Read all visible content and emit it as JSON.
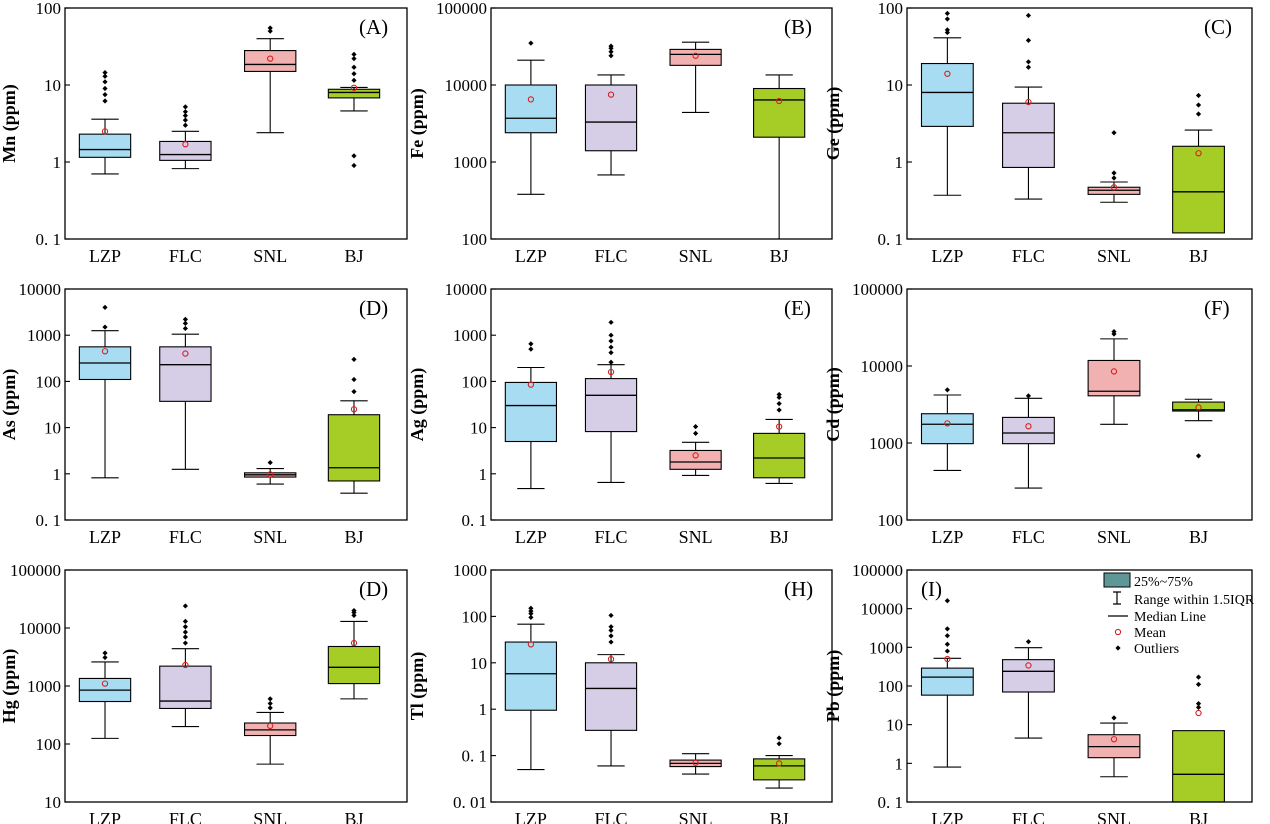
{
  "colors": {
    "LZP": "#a8dcf2",
    "FLC": "#d6cde6",
    "SNL": "#f2b1b1",
    "BJ": "#a5cd25",
    "mean": "#d62020",
    "frame": "#000000",
    "legend_box": "#5f9798"
  },
  "legend": {
    "box": "25%~75%",
    "range": "Range within 1.5IQR",
    "median": "Median Line",
    "mean": "Mean",
    "outliers": "Outliers"
  },
  "chart_data": [
    {
      "type": "box",
      "panel": "(A)",
      "ylabel": "Mn (ppm)",
      "yscale": "log",
      "ylim": [
        0.1,
        100
      ],
      "ticks": [
        0.1,
        1,
        10,
        100
      ],
      "tick_labels": [
        "0. 1",
        "1",
        "10",
        "100"
      ],
      "categories": [
        "LZP",
        "FLC",
        "SNL",
        "BJ"
      ],
      "boxes": [
        {
          "min": 0.7,
          "q1": 1.15,
          "median": 1.45,
          "q3": 2.3,
          "max": 3.6,
          "mean": 2.5,
          "outliers": [
            6.2,
            7.5,
            9.0,
            11.0,
            13.0,
            14.5
          ]
        },
        {
          "min": 0.82,
          "q1": 1.05,
          "median": 1.25,
          "q3": 1.85,
          "max": 2.5,
          "mean": 1.7,
          "outliers": [
            3.0,
            3.5,
            4.0,
            4.5,
            5.2
          ]
        },
        {
          "min": 2.4,
          "q1": 15,
          "median": 18.5,
          "q3": 28,
          "max": 40,
          "mean": 22,
          "outliers": [
            50,
            55
          ]
        },
        {
          "min": 4.6,
          "q1": 6.8,
          "median": 8.0,
          "q3": 8.8,
          "max": 9.3,
          "mean": 9.2,
          "outliers": [
            0.9,
            1.2,
            11.5,
            14,
            17,
            22,
            25
          ]
        }
      ]
    },
    {
      "type": "box",
      "panel": "(B)",
      "ylabel": "Fe (ppm)",
      "yscale": "log",
      "ylim": [
        100,
        100000
      ],
      "ticks": [
        100,
        1000,
        10000,
        100000
      ],
      "tick_labels": [
        "100",
        "1000",
        "10000",
        "100000"
      ],
      "categories": [
        "LZP",
        "FLC",
        "SNL",
        "BJ"
      ],
      "boxes": [
        {
          "min": 380,
          "q1": 2400,
          "median": 3700,
          "q3": 10000,
          "max": 21000,
          "mean": 6500,
          "outliers": [
            35000
          ]
        },
        {
          "min": 680,
          "q1": 1400,
          "median": 3300,
          "q3": 10000,
          "max": 13500,
          "mean": 7500,
          "outliers": [
            24000,
            27000,
            30000,
            32000
          ]
        },
        {
          "min": 4400,
          "q1": 18000,
          "median": 25000,
          "q3": 29000,
          "max": 36000,
          "mean": 24000,
          "outliers": []
        },
        {
          "min": 100,
          "q1": 2100,
          "median": 6400,
          "q3": 9000,
          "max": 13500,
          "mean": 6200,
          "outliers": []
        }
      ]
    },
    {
      "type": "box",
      "panel": "(C)",
      "ylabel": "Ge (ppm)",
      "yscale": "log",
      "ylim": [
        0.1,
        100
      ],
      "ticks": [
        0.1,
        1,
        10,
        100
      ],
      "tick_labels": [
        "0. 1",
        "1",
        "10",
        "100"
      ],
      "categories": [
        "LZP",
        "FLC",
        "SNL",
        "BJ"
      ],
      "boxes": [
        {
          "min": 0.37,
          "q1": 2.9,
          "median": 8.0,
          "q3": 19,
          "max": 41,
          "mean": 14,
          "outliers": [
            48,
            52,
            72,
            85
          ]
        },
        {
          "min": 0.33,
          "q1": 0.85,
          "median": 2.4,
          "q3": 5.8,
          "max": 9.4,
          "mean": 6.0,
          "outliers": [
            17,
            20,
            38,
            80
          ]
        },
        {
          "min": 0.3,
          "q1": 0.38,
          "median": 0.43,
          "q3": 0.47,
          "max": 0.55,
          "mean": 0.47,
          "outliers": [
            0.62,
            0.72,
            2.4
          ]
        },
        {
          "min": 0.12,
          "q1": 0.12,
          "median": 0.41,
          "q3": 1.6,
          "max": 2.6,
          "mean": 1.3,
          "outliers": [
            4.2,
            5.5,
            7.3
          ]
        }
      ]
    },
    {
      "type": "box",
      "panel": "(D)",
      "ylabel": "As (ppm)",
      "yscale": "log",
      "ylim": [
        0.1,
        10000
      ],
      "ticks": [
        0.1,
        1,
        10,
        100,
        1000,
        10000
      ],
      "tick_labels": [
        "0. 1",
        "1",
        "10",
        "100",
        "1000",
        "10000"
      ],
      "categories": [
        "LZP",
        "FLC",
        "SNL",
        "BJ"
      ],
      "boxes": [
        {
          "min": 0.82,
          "q1": 110,
          "median": 250,
          "q3": 560,
          "max": 1250,
          "mean": 450,
          "outliers": [
            1500,
            4000
          ]
        },
        {
          "min": 1.25,
          "q1": 37,
          "median": 230,
          "q3": 560,
          "max": 1050,
          "mean": 400,
          "outliers": [
            1400,
            1800,
            2200
          ]
        },
        {
          "min": 0.6,
          "q1": 0.85,
          "median": 0.95,
          "q3": 1.05,
          "max": 1.3,
          "mean": 0.97,
          "outliers": [
            1.75
          ]
        },
        {
          "min": 0.38,
          "q1": 0.7,
          "median": 1.35,
          "q3": 19,
          "max": 38,
          "mean": 25,
          "outliers": [
            60,
            110,
            300
          ]
        }
      ]
    },
    {
      "type": "box",
      "panel": "(E)",
      "ylabel": "Ag (ppm)",
      "yscale": "log",
      "ylim": [
        0.1,
        10000
      ],
      "ticks": [
        0.1,
        1,
        10,
        100,
        1000,
        10000
      ],
      "tick_labels": [
        "0. 1",
        "1",
        "10",
        "100",
        "1000",
        "10000"
      ],
      "categories": [
        "LZP",
        "FLC",
        "SNL",
        "BJ"
      ],
      "boxes": [
        {
          "min": 0.48,
          "q1": 5,
          "median": 30,
          "q3": 95,
          "max": 200,
          "mean": 85,
          "outliers": [
            500,
            650
          ]
        },
        {
          "min": 0.65,
          "q1": 8.2,
          "median": 50,
          "q3": 115,
          "max": 230,
          "mean": 160,
          "outliers": [
            260,
            420,
            550,
            750,
            1000,
            1900
          ]
        },
        {
          "min": 0.92,
          "q1": 1.25,
          "median": 1.8,
          "q3": 3.2,
          "max": 4.8,
          "mean": 2.5,
          "outliers": [
            7.5,
            10.5
          ]
        },
        {
          "min": 0.62,
          "q1": 0.82,
          "median": 2.2,
          "q3": 7.5,
          "max": 15,
          "mean": 10.5,
          "outliers": [
            24,
            33,
            45,
            52
          ]
        }
      ]
    },
    {
      "type": "box",
      "panel": "(F)",
      "ylabel": "Cd (ppm)",
      "yscale": "log",
      "ylim": [
        100,
        100000
      ],
      "ticks": [
        100,
        1000,
        10000,
        100000
      ],
      "tick_labels": [
        "100",
        "1000",
        "10000",
        "100000"
      ],
      "categories": [
        "LZP",
        "FLC",
        "SNL",
        "BJ"
      ],
      "boxes": [
        {
          "min": 440,
          "q1": 980,
          "median": 1750,
          "q3": 2400,
          "max": 4200,
          "mean": 1800,
          "outliers": [
            4900
          ]
        },
        {
          "min": 260,
          "q1": 980,
          "median": 1350,
          "q3": 2150,
          "max": 3800,
          "mean": 1650,
          "outliers": [
            4100
          ]
        },
        {
          "min": 1750,
          "q1": 4100,
          "median": 4700,
          "q3": 11800,
          "max": 22500,
          "mean": 8500,
          "outliers": [
            26000,
            28000
          ]
        },
        {
          "min": 1950,
          "q1": 2600,
          "median": 2700,
          "q3": 3400,
          "max": 3700,
          "mean": 2900,
          "outliers": [
            680
          ]
        }
      ]
    },
    {
      "type": "box",
      "panel": "(D)",
      "ylabel": "Hg (ppm)",
      "yscale": "log",
      "ylim": [
        10,
        100000
      ],
      "ticks": [
        10,
        100,
        1000,
        10000,
        100000
      ],
      "tick_labels": [
        "10",
        "100",
        "1000",
        "10000",
        "100000"
      ],
      "categories": [
        "LZP",
        "FLC",
        "SNL",
        "BJ"
      ],
      "boxes": [
        {
          "min": 125,
          "q1": 540,
          "median": 850,
          "q3": 1350,
          "max": 2600,
          "mean": 1100,
          "outliers": [
            3100,
            3700
          ]
        },
        {
          "min": 200,
          "q1": 410,
          "median": 550,
          "q3": 2200,
          "max": 4400,
          "mean": 2300,
          "outliers": [
            5500,
            7000,
            8500,
            10500,
            13000,
            24000
          ]
        },
        {
          "min": 45,
          "q1": 140,
          "median": 175,
          "q3": 230,
          "max": 350,
          "mean": 205,
          "outliers": [
            420,
            500,
            600
          ]
        },
        {
          "min": 600,
          "q1": 1100,
          "median": 2100,
          "q3": 4800,
          "max": 13000,
          "mean": 5500,
          "outliers": [
            16500,
            18500,
            20000
          ]
        }
      ]
    },
    {
      "type": "box",
      "panel": "(H)",
      "ylabel": "Tl (ppm)",
      "yscale": "log",
      "ylim": [
        0.01,
        1000
      ],
      "ticks": [
        0.01,
        0.1,
        1,
        10,
        100,
        1000
      ],
      "tick_labels": [
        "0. 01",
        "0. 1",
        "1",
        "10",
        "100",
        "1000"
      ],
      "categories": [
        "LZP",
        "FLC",
        "SNL",
        "BJ"
      ],
      "boxes": [
        {
          "min": 0.05,
          "q1": 0.95,
          "median": 5.8,
          "q3": 28,
          "max": 68,
          "mean": 25,
          "outliers": [
            95,
            115,
            130,
            150
          ]
        },
        {
          "min": 0.06,
          "q1": 0.35,
          "median": 2.8,
          "q3": 10,
          "max": 15,
          "mean": 12,
          "outliers": [
            28,
            38,
            50,
            60,
            105
          ]
        },
        {
          "min": 0.04,
          "q1": 0.058,
          "median": 0.068,
          "q3": 0.08,
          "max": 0.11,
          "mean": 0.07,
          "outliers": []
        },
        {
          "min": 0.02,
          "q1": 0.03,
          "median": 0.06,
          "q3": 0.085,
          "max": 0.1,
          "mean": 0.068,
          "outliers": [
            0.18,
            0.24
          ]
        }
      ]
    },
    {
      "type": "box",
      "panel": "(I)",
      "ylabel": "Pb (ppm)",
      "yscale": "log",
      "ylim": [
        0.1,
        100000
      ],
      "ticks": [
        0.1,
        1,
        10,
        100,
        1000,
        10000,
        100000
      ],
      "tick_labels": [
        "0. 1",
        "1",
        "10",
        "100",
        "1000",
        "10000",
        "100000"
      ],
      "categories": [
        "LZP",
        "FLC",
        "SNL",
        "BJ"
      ],
      "boxes": [
        {
          "min": 0.8,
          "q1": 58,
          "median": 170,
          "q3": 290,
          "max": 520,
          "mean": 500,
          "outliers": [
            800,
            1200,
            2000,
            3000,
            16000
          ]
        },
        {
          "min": 4.5,
          "q1": 70,
          "median": 240,
          "q3": 480,
          "max": 980,
          "mean": 340,
          "outliers": [
            1400
          ]
        },
        {
          "min": 0.45,
          "q1": 1.4,
          "median": 2.7,
          "q3": 5.5,
          "max": 11,
          "mean": 4.2,
          "outliers": [
            15
          ]
        },
        {
          "min": 0.1,
          "q1": 0.1,
          "median": 0.52,
          "q3": 7.0,
          "max": 7.0,
          "mean": 20,
          "outliers": [
            28,
            35,
            110,
            170
          ]
        }
      ]
    }
  ]
}
